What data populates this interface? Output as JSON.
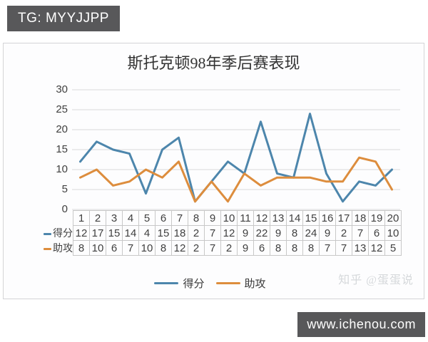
{
  "badges": {
    "top_left": "TG: MYYJJPP",
    "bottom_right": "www.ichenou.com"
  },
  "watermark": "知乎 @蛋蛋说",
  "chart_data": {
    "type": "line",
    "title": "斯托克顿98年季后赛表现",
    "categories": [
      1,
      2,
      3,
      4,
      5,
      6,
      7,
      8,
      9,
      10,
      11,
      12,
      13,
      14,
      15,
      16,
      17,
      18,
      19,
      20
    ],
    "series": [
      {
        "name": "得分",
        "color": "#4d86ac",
        "values": [
          12,
          17,
          15,
          14,
          4,
          15,
          18,
          2,
          7,
          12,
          9,
          22,
          9,
          8,
          24,
          9,
          2,
          7,
          6,
          10
        ]
      },
      {
        "name": "助攻",
        "color": "#dd8d3d",
        "values": [
          8,
          10,
          6,
          7,
          10,
          8,
          12,
          2,
          7,
          2,
          9,
          6,
          8,
          8,
          8,
          7,
          7,
          13,
          12,
          5
        ]
      }
    ],
    "ylim": [
      0,
      30
    ],
    "yticks": [
      0,
      5,
      10,
      15,
      20,
      25,
      30
    ],
    "xlabel": "",
    "ylabel": "",
    "grid": "horizontal",
    "legend_position": "bottom",
    "table_shown": true
  }
}
